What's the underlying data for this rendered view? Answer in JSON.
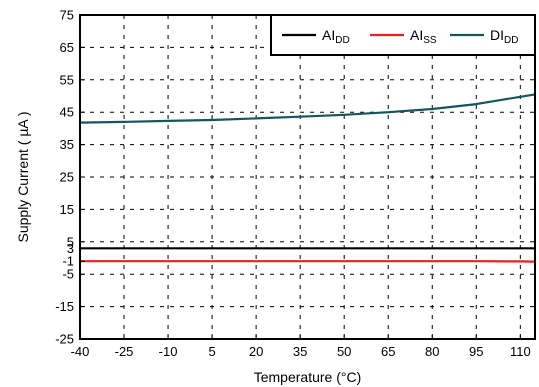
{
  "chart_data": {
    "type": "line",
    "xlabel": "Temperature (°C)",
    "ylabel": "Supply Current ( µA )",
    "xlim": [
      -40,
      115
    ],
    "ylim": [
      -25,
      75
    ],
    "x_ticks": [
      "-40",
      "-25",
      "-10",
      "5",
      "20",
      "35",
      "50",
      "65",
      "80",
      "95",
      "110"
    ],
    "y_ticks": [
      "75",
      "65",
      "55",
      "45",
      "35",
      "25",
      "15",
      "5",
      "-5",
      "-15",
      "-25"
    ],
    "y_ticks_extra": [
      "-1",
      "3"
    ],
    "grid": true,
    "legend_position": "top-right",
    "series": [
      {
        "name": "AI",
        "name_sub": "DD",
        "color": "#000000",
        "x": [
          -40,
          -25,
          -10,
          5,
          20,
          35,
          50,
          65,
          80,
          95,
          110,
          115
        ],
        "y": [
          3,
          3,
          3,
          3,
          3,
          3,
          3,
          3,
          3,
          3,
          3,
          3
        ]
      },
      {
        "name": "AI",
        "name_sub": "SS",
        "color": "#e8201f",
        "x": [
          -40,
          -25,
          -10,
          5,
          20,
          35,
          50,
          65,
          80,
          95,
          110,
          115
        ],
        "y": [
          -1,
          -1,
          -1,
          -1,
          -1,
          -1,
          -1,
          -1,
          -1,
          -1,
          -1.05,
          -1.1
        ]
      },
      {
        "name": "DI",
        "name_sub": "DD",
        "color": "#17555e",
        "x": [
          -40,
          -25,
          -10,
          5,
          20,
          35,
          50,
          65,
          80,
          95,
          105,
          115
        ],
        "y": [
          41.8,
          42.0,
          42.3,
          42.6,
          43.1,
          43.6,
          44.2,
          45.0,
          46.0,
          47.5,
          49.0,
          50.5
        ]
      }
    ]
  }
}
